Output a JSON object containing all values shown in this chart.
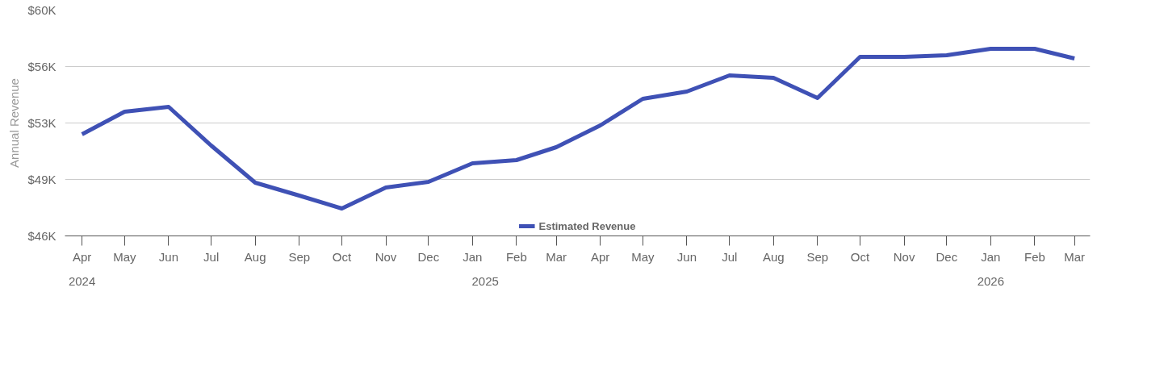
{
  "chart_data": {
    "type": "line",
    "ylabel": "Annual Revenue",
    "x": [
      "2024-04",
      "2024-05",
      "2024-06",
      "2024-07",
      "2024-08",
      "2024-09",
      "2024-10",
      "2024-11",
      "2024-12",
      "2025-01",
      "2025-02",
      "2025-03",
      "2025-04",
      "2025-05",
      "2025-06",
      "2025-07",
      "2025-08",
      "2025-09",
      "2025-10",
      "2025-11",
      "2025-12",
      "2026-01",
      "2026-02",
      "2026-03"
    ],
    "series": [
      {
        "name": "Estimated Revenue",
        "color": "#3f51b5",
        "values": [
          52.3,
          53.7,
          54.0,
          51.6,
          49.3,
          48.5,
          47.7,
          49.0,
          49.35,
          50.5,
          50.7,
          51.5,
          52.85,
          54.5,
          54.95,
          55.95,
          55.8,
          54.55,
          57.1,
          57.1,
          57.2,
          57.6,
          57.6,
          57.0
        ]
      }
    ],
    "xlim": [
      "2024-03-20",
      "2026-03-12"
    ],
    "xticks": [
      {
        "value": "2024-04",
        "label": "Apr"
      },
      {
        "value": "2024-05",
        "label": "May"
      },
      {
        "value": "2024-06",
        "label": "Jun"
      },
      {
        "value": "2024-07",
        "label": "Jul"
      },
      {
        "value": "2024-08",
        "label": "Aug"
      },
      {
        "value": "2024-09",
        "label": "Sep"
      },
      {
        "value": "2024-10",
        "label": "Oct"
      },
      {
        "value": "2024-11",
        "label": "Nov"
      },
      {
        "value": "2024-12",
        "label": "Dec"
      },
      {
        "value": "2025-01",
        "label": "Jan"
      },
      {
        "value": "2025-02",
        "label": "Feb"
      },
      {
        "value": "2025-03",
        "label": "Mar"
      },
      {
        "value": "2025-04",
        "label": "Apr"
      },
      {
        "value": "2025-05",
        "label": "May"
      },
      {
        "value": "2025-06",
        "label": "Jun"
      },
      {
        "value": "2025-07",
        "label": "Jul"
      },
      {
        "value": "2025-08",
        "label": "Aug"
      },
      {
        "value": "2025-09",
        "label": "Sep"
      },
      {
        "value": "2025-10",
        "label": "Oct"
      },
      {
        "value": "2025-11",
        "label": "Nov"
      },
      {
        "value": "2025-12",
        "label": "Dec"
      },
      {
        "value": "2026-01",
        "label": "Jan"
      },
      {
        "value": "2026-02",
        "label": "Feb"
      },
      {
        "value": "2026-03",
        "label": "Mar"
      }
    ],
    "x2lim": [
      "2024-03-20",
      "2026-03-12"
    ],
    "x2ticks": [
      {
        "value": "2024-04",
        "label": "2024"
      },
      {
        "value": "2025-01-10",
        "label": "2025"
      },
      {
        "value": "2026-01",
        "label": "2026"
      }
    ],
    "ylim": [
      46,
      60
    ],
    "yticks": [
      {
        "value": 46,
        "label": "$46K"
      },
      {
        "value": 49.5,
        "label": "$49K"
      },
      {
        "value": 53,
        "label": "$53K"
      },
      {
        "value": 56.5,
        "label": "$56K"
      },
      {
        "value": 60,
        "label": "$60K"
      }
    ],
    "grid": "y",
    "legend": "bottom",
    "line_style": "solid"
  }
}
